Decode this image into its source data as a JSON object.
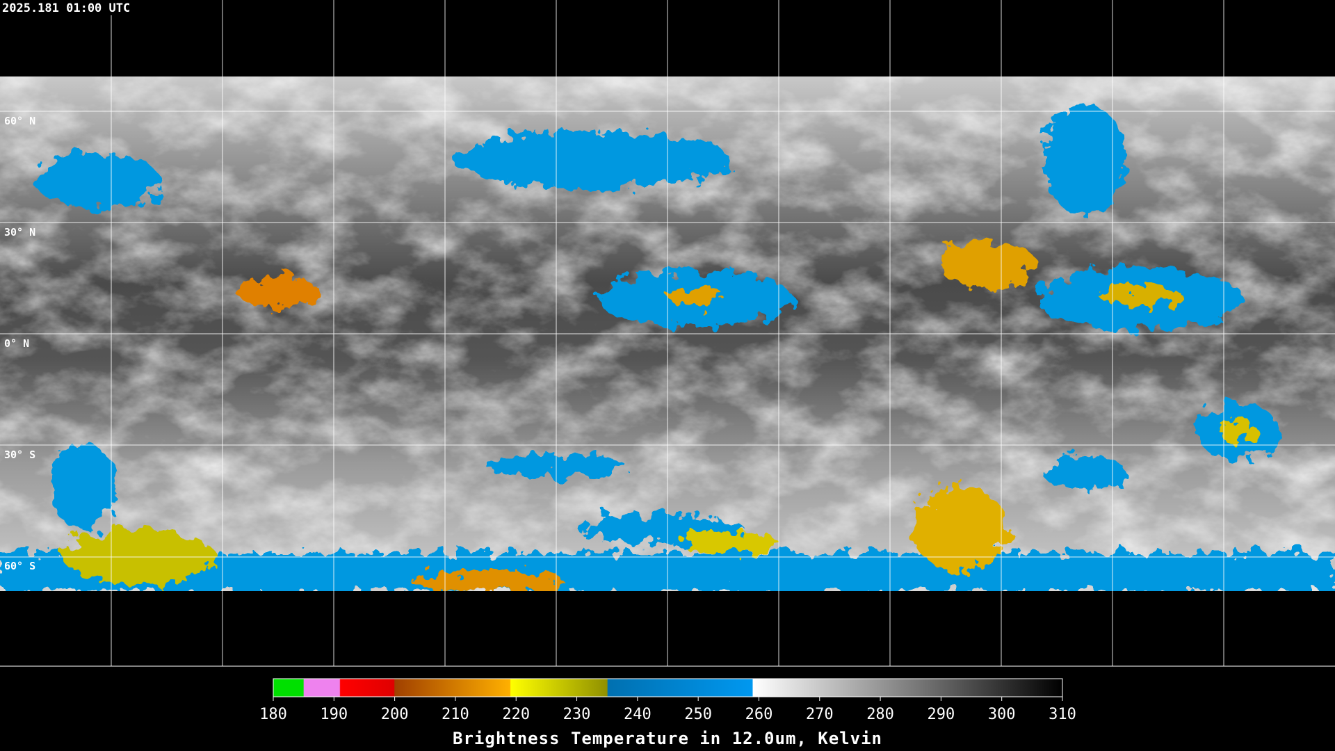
{
  "header": {
    "timestamp": "2025.181 01:00 UTC"
  },
  "map": {
    "lat_labels": [
      "60° N",
      "30° N",
      "0° N",
      "30° S",
      "60° S"
    ]
  },
  "colorbar": {
    "range": [
      180,
      310
    ],
    "ticks": [
      180,
      190,
      200,
      210,
      220,
      230,
      240,
      250,
      260,
      270,
      280,
      290,
      300,
      310
    ],
    "title": "Brightness Temperature in 12.0um, Kelvin"
  }
}
